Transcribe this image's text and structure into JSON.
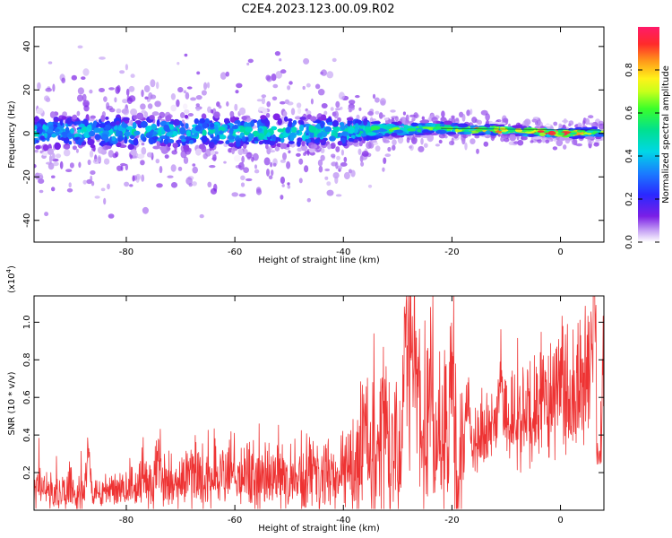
{
  "title": "C2E4.2023.123.00.09.R02",
  "colorbar": {
    "label": "Normalized spectral amplitude",
    "ticks": [
      "0.0",
      "0.2",
      "0.4",
      "0.6",
      "0.8"
    ],
    "tick_values": [
      0.0,
      0.2,
      0.4,
      0.6,
      0.8
    ],
    "range": [
      0,
      1
    ]
  },
  "chart_data": [
    {
      "type": "heatmap",
      "title": "C2E4.2023.123.00.09.R02",
      "xlabel": "Height of straight line (km)",
      "ylabel": "Frequency (Hz)",
      "xlim": [
        -97,
        8
      ],
      "ylim": [
        -50,
        49
      ],
      "x_ticks": [
        -80,
        -60,
        -40,
        -20,
        0
      ],
      "x_tick_labels": [
        "-80",
        "-60",
        "-40",
        "-20",
        "0"
      ],
      "y_ticks": [
        -40,
        -20,
        0,
        20,
        40
      ],
      "y_tick_labels": [
        "-40",
        "-20",
        "0",
        "20",
        "40"
      ],
      "colorscale": "rainbow",
      "band_center_hz": [
        {
          "x": -95,
          "y": 0.5
        },
        {
          "x": -80,
          "y": 0.5
        },
        {
          "x": -60,
          "y": 0.5
        },
        {
          "x": -40,
          "y": 1.0
        },
        {
          "x": -30,
          "y": 2.0
        },
        {
          "x": -22,
          "y": 2.5
        },
        {
          "x": -20,
          "y": 2.0
        },
        {
          "x": -10,
          "y": 1.5
        },
        {
          "x": 0,
          "y": 0.0
        },
        {
          "x": 7,
          "y": 0.5
        }
      ],
      "band_halfwidth_hz": [
        {
          "x": -95,
          "y": 7
        },
        {
          "x": -60,
          "y": 7
        },
        {
          "x": -40,
          "y": 6
        },
        {
          "x": -30,
          "y": 3
        },
        {
          "x": -20,
          "y": 2.5
        },
        {
          "x": -10,
          "y": 1.8
        },
        {
          "x": 7,
          "y": 2
        }
      ],
      "peak_amplitude": [
        {
          "x": -95,
          "y": 0.45
        },
        {
          "x": -40,
          "y": 0.5
        },
        {
          "x": -30,
          "y": 0.6
        },
        {
          "x": -20,
          "y": 0.65
        },
        {
          "x": -15,
          "y": 0.85
        },
        {
          "x": -10,
          "y": 0.9
        },
        {
          "x": 0,
          "y": 0.95
        },
        {
          "x": 7,
          "y": 0.7
        }
      ]
    },
    {
      "type": "line",
      "xlabel": "Height of straight line (km)",
      "ylabel": "SNR (10 * v/v)",
      "y_multiplier_label": "(x10",
      "y_multiplier_exp": "4",
      "y_multiplier_close": ")",
      "xlim": [
        -97,
        8
      ],
      "ylim": [
        0,
        11400
      ],
      "x_ticks": [
        -80,
        -60,
        -40,
        -20,
        0
      ],
      "x_tick_labels": [
        "-80",
        "-60",
        "-40",
        "-20",
        "0"
      ],
      "y_ticks": [
        2000,
        4000,
        6000,
        8000,
        10000
      ],
      "y_tick_labels": [
        "0.2",
        "0.4",
        "0.6",
        "0.8",
        "1.0"
      ],
      "color": "#ee3333",
      "baseline": [
        {
          "x": -97,
          "y": 900
        },
        {
          "x": -88,
          "y": 800
        },
        {
          "x": -80,
          "y": 900
        },
        {
          "x": -75,
          "y": 1400
        },
        {
          "x": -60,
          "y": 1600
        },
        {
          "x": -50,
          "y": 1500
        },
        {
          "x": -40,
          "y": 1800
        },
        {
          "x": -35,
          "y": 2500
        },
        {
          "x": -30,
          "y": 3000
        },
        {
          "x": -25,
          "y": 2900
        },
        {
          "x": -20,
          "y": 2600
        },
        {
          "x": -15,
          "y": 3600
        },
        {
          "x": -12,
          "y": 4200
        },
        {
          "x": -10,
          "y": 4500
        },
        {
          "x": -5,
          "y": 5200
        },
        {
          "x": 0,
          "y": 5600
        },
        {
          "x": 5,
          "y": 6500
        },
        {
          "x": 6,
          "y": 6800
        },
        {
          "x": 7,
          "y": 3000
        },
        {
          "x": 8,
          "y": 6500
        }
      ],
      "peaks": [
        {
          "x": -28.5,
          "y": 10900
        },
        {
          "x": -27.5,
          "y": 10700
        },
        {
          "x": -26.5,
          "y": 9200
        },
        {
          "x": -24,
          "y": 8200
        },
        {
          "x": -20,
          "y": 7800
        },
        {
          "x": -17,
          "y": 6800
        },
        {
          "x": -11,
          "y": 8800
        },
        {
          "x": -36,
          "y": 5100
        },
        {
          "x": 6.2,
          "y": 11400
        },
        {
          "x": -87,
          "y": 3400
        },
        {
          "x": -74,
          "y": 3300
        }
      ]
    }
  ]
}
